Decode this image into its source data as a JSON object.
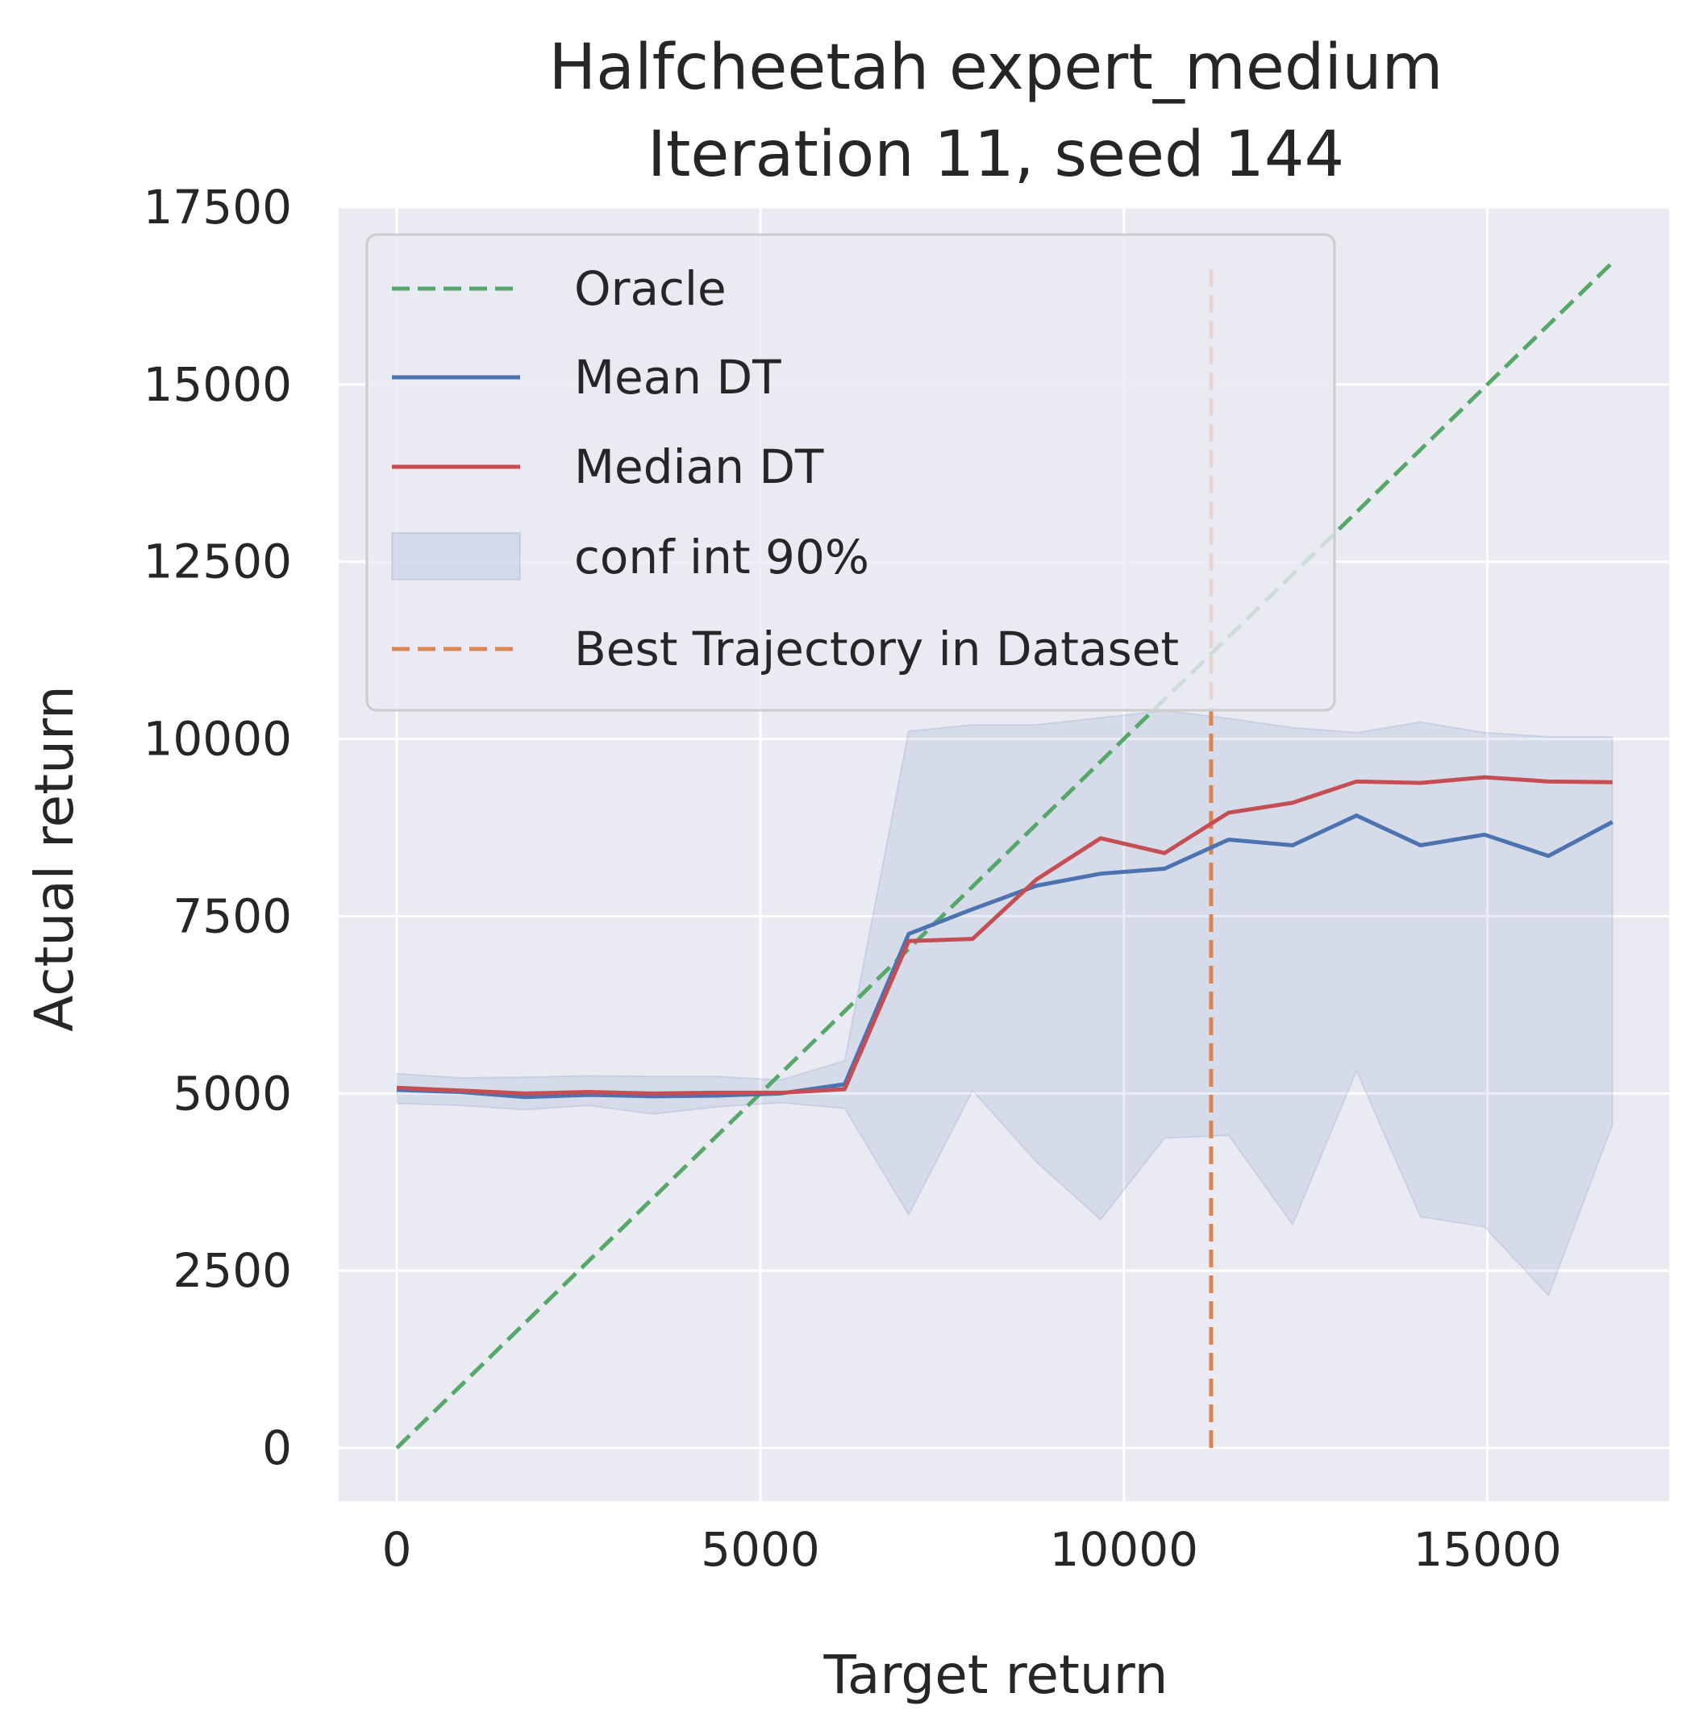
{
  "chart_data": {
    "type": "line",
    "title_line1": "Halfcheetah expert_medium",
    "title_line2": "Iteration 11, seed 144",
    "xlabel": "Target return",
    "ylabel": "Actual return",
    "xlim": [
      -800,
      17500
    ],
    "ylim": [
      -750,
      17500
    ],
    "xticks": [
      0,
      5000,
      10000,
      15000
    ],
    "yticks": [
      0,
      2500,
      5000,
      7500,
      10000,
      12500,
      15000,
      17500
    ],
    "xtick_labels": [
      "0",
      "5000",
      "10000",
      "15000"
    ],
    "ytick_labels": [
      "0",
      "2500",
      "5000",
      "7500",
      "10000",
      "12500",
      "15000",
      "17500"
    ],
    "grid": true,
    "legend_position": "upper-left",
    "x": [
      0,
      880,
      1760,
      2640,
      3520,
      4400,
      5280,
      6160,
      7040,
      7920,
      8800,
      9680,
      10560,
      11440,
      12320,
      13200,
      14080,
      14960,
      15840,
      16720
    ],
    "series": [
      {
        "name": "Oracle",
        "kind": "line-dashed",
        "color": "#55a868",
        "points": [
          [
            0,
            0
          ],
          [
            16720,
            16720
          ]
        ]
      },
      {
        "name": "Mean DT",
        "kind": "line",
        "color": "#4c72b0",
        "values": [
          5050,
          5020,
          4950,
          4980,
          4960,
          4970,
          5000,
          5130,
          7250,
          7600,
          7930,
          8100,
          8170,
          8580,
          8500,
          8920,
          8500,
          8650,
          8350,
          8830
        ]
      },
      {
        "name": "Median DT",
        "kind": "line",
        "color": "#c44e52",
        "values": [
          5080,
          5040,
          5000,
          5020,
          5000,
          5010,
          5010,
          5060,
          7150,
          7180,
          8020,
          8600,
          8390,
          8960,
          9100,
          9400,
          9380,
          9460,
          9400,
          9390
        ]
      },
      {
        "name": "conf int 90%",
        "kind": "band",
        "color": "#4c72b0",
        "opacity": 0.12,
        "upper": [
          5280,
          5220,
          5230,
          5250,
          5240,
          5240,
          5190,
          5460,
          10110,
          10200,
          10200,
          10300,
          10400,
          10290,
          10160,
          10090,
          10240,
          10090,
          10030,
          10030
        ],
        "lower": [
          4860,
          4830,
          4770,
          4830,
          4710,
          4810,
          4870,
          4790,
          3290,
          5040,
          4030,
          3220,
          4370,
          4410,
          3150,
          5320,
          3260,
          3120,
          2150,
          4560
        ]
      },
      {
        "name": "Best Trajectory in Dataset",
        "kind": "vline-dashed",
        "color": "#dd8452",
        "x_value": 11200,
        "y_range": [
          0,
          16720
        ]
      }
    ]
  }
}
